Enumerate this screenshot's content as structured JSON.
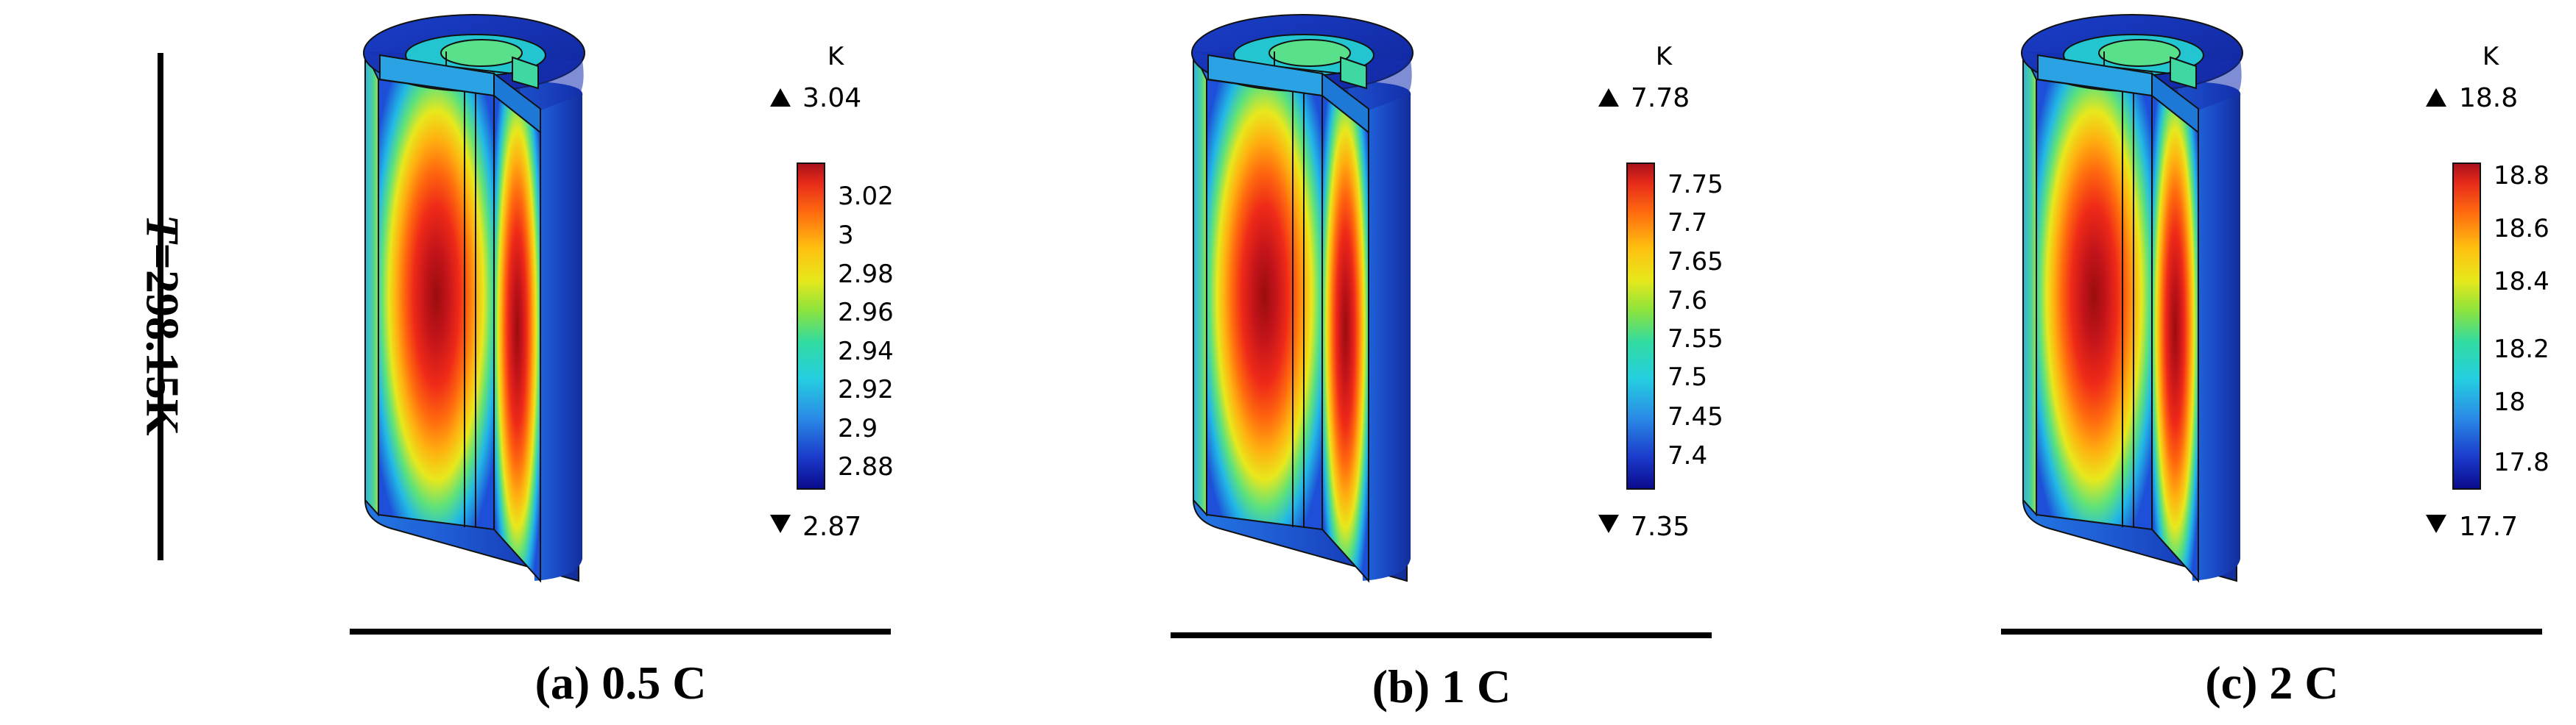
{
  "row_label": {
    "variable": "T",
    "value": "=298.15K"
  },
  "panels": [
    {
      "caption": "(a) 0.5 C",
      "unit": "K",
      "max_label": "3.04",
      "min_label": "2.87",
      "ticks": [
        "3.02",
        "3",
        "2.98",
        "2.96",
        "2.94",
        "2.92",
        "2.9",
        "2.88"
      ]
    },
    {
      "caption": "(b) 1 C",
      "unit": "K",
      "max_label": "7.78",
      "min_label": "7.35",
      "ticks": [
        "7.75",
        "7.7",
        "7.65",
        "7.6",
        "7.55",
        "7.5",
        "7.45",
        "7.4"
      ]
    },
    {
      "caption": "(c) 2 C",
      "unit": "K",
      "max_label": "18.8",
      "min_label": "17.7",
      "ticks": [
        "18.8",
        "18.6",
        "18.4",
        "18.2",
        "18",
        "17.8"
      ]
    }
  ],
  "colors": {
    "colormap": [
      "#0a0a8c",
      "#1f4fe0",
      "#2aa7e8",
      "#21d7c8",
      "#56e05a",
      "#d9e71e",
      "#ffd011",
      "#ff8a0b",
      "#f2361a",
      "#a8111b"
    ]
  }
}
